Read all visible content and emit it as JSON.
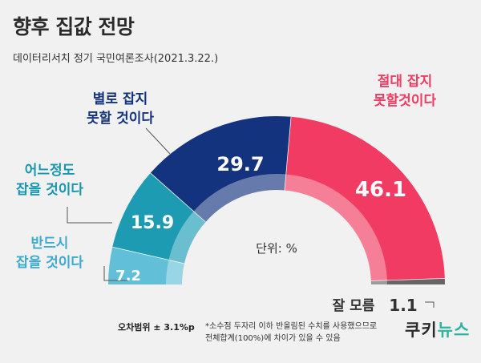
{
  "title": "향후 집값 전망",
  "subtitle": "데이터리서치 정기 국민여론조사(2021.3.22.)",
  "unit_label": "단위: %",
  "colors": {
    "반드시 잡을 것이다": "#62bfd8",
    "어느정도 잡을 것이다": "#1c9bb3",
    "별로 잡지 못할 것이다": "#14337f",
    "절대 잡지 못할것이다": "#f23b62",
    "잘 모름": "#666666"
  },
  "chart_data": {
    "type": "pie",
    "subtype": "semi-donut",
    "title": "향후 집값 전망",
    "unit": "%",
    "categories": [
      "반드시 잡을 것이다",
      "어느정도 잡을 것이다",
      "별로 잡지 못할 것이다",
      "절대 잡지 못할것이다",
      "잘 모름"
    ],
    "values": [
      7.2,
      15.9,
      29.7,
      46.1,
      1.1
    ],
    "labels": [
      "반드시\n잡을 것이다",
      "어느정도\n잡을 것이다",
      "별로 잡지\n못할 것이다",
      "절대 잡지\n못할것이다",
      "잘 모름"
    ],
    "value_labels": [
      "7.2",
      "15.9",
      "29.7",
      "46.1",
      "1.1"
    ]
  },
  "footnote": {
    "margin": "오차범위 ± 3.1%p",
    "note": "*소수점 두자리 이하 반올림된 수치를 사용했으므로\n 전체합계(100%)에 차이가 있을 수 있음"
  },
  "logo": {
    "part1": "쿠키",
    "part2": "뉴스"
  }
}
